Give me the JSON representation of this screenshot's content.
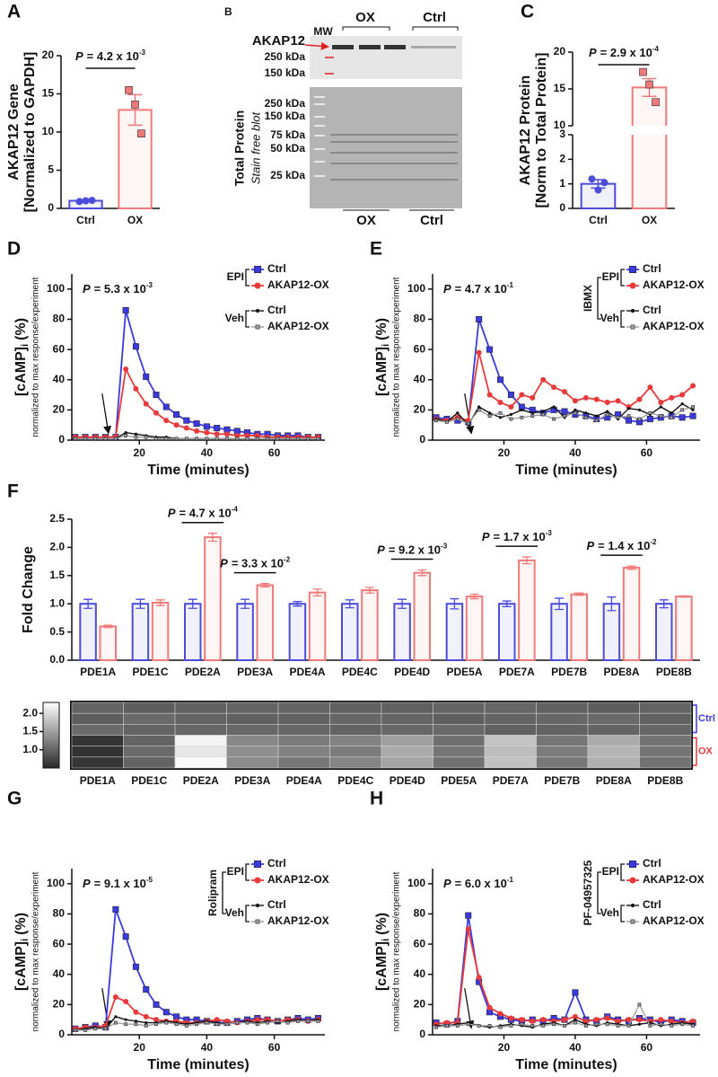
{
  "chart_data": [
    {
      "type": "bar",
      "panel_label": "A",
      "ylabel": "AKAP12 Gene",
      "ylabel2": "[Normalized to GAPDH]",
      "categories": [
        "Ctrl",
        "OX"
      ],
      "values": [
        1.0,
        12.9
      ],
      "errors": [
        0.1,
        2.0
      ],
      "points": [
        [
          0.9,
          1.0,
          1.05
        ],
        [
          15.5,
          13.6,
          9.8
        ]
      ],
      "colors": [
        "#4b4bdc",
        "#f07a7a"
      ],
      "ylim": [
        0,
        20
      ],
      "yticks": [
        0,
        5,
        10,
        15,
        20
      ],
      "p_value": {
        "symbol": "P",
        "text": "= 4.2 x 10",
        "exponent": "-3"
      }
    },
    {
      "type": "bar",
      "panel_label": "C",
      "ylabel": "AKAP12 Protein",
      "ylabel2": "[Norm to Total Protein]",
      "categories": [
        "Ctrl",
        "OX"
      ],
      "values": [
        1.0,
        15.2
      ],
      "errors": [
        0.17,
        1.2
      ],
      "points": [
        [
          1.2,
          0.75,
          1.05
        ],
        [
          17.3,
          15.6,
          13.2
        ]
      ],
      "colors": [
        "#4b4bdc",
        "#f07a7a"
      ],
      "ylim": [
        0,
        20
      ],
      "axis_break": [
        3,
        10
      ],
      "yticks": [
        0,
        1,
        2,
        3,
        10,
        15,
        20
      ],
      "p_value": {
        "symbol": "P",
        "text": "= 2.9 x 10",
        "exponent": "-4"
      }
    },
    {
      "type": "line",
      "panel_label": "D",
      "ylabel": "[cAMP]",
      "ylabel_sub": "i",
      "ylabel_unit": "(%)",
      "ylabel2": "normalized to max response/experiment",
      "xlabel": "Time (minutes)",
      "legend_groups": [
        "EPI",
        "Veh"
      ],
      "p_value": {
        "symbol": "P",
        "text": "= 5.3 x 10",
        "exponent": "-3"
      },
      "xlim": [
        0,
        75
      ],
      "xticks": [
        20,
        40,
        60
      ],
      "ylim": [
        0,
        110
      ],
      "yticks": [
        0,
        20,
        40,
        60,
        80,
        100
      ],
      "x": [
        1,
        4,
        7,
        10,
        13,
        16,
        19,
        22,
        25,
        28,
        31,
        34,
        37,
        40,
        43,
        46,
        49,
        52,
        55,
        58,
        61,
        64,
        67,
        70,
        73
      ],
      "series": [
        {
          "name": "Ctrl",
          "color": "#3a3ae0",
          "values": [
            2,
            2,
            2,
            2,
            2,
            86,
            62,
            42,
            30,
            22,
            17,
            13,
            11,
            9,
            8,
            7,
            6,
            5,
            4,
            4,
            3,
            3,
            3,
            2,
            2
          ]
        },
        {
          "name": "AKAP12-OX",
          "color": "#e83a3a",
          "values": [
            2,
            2,
            2,
            2,
            2,
            47,
            34,
            24,
            18,
            13,
            10,
            8,
            6,
            5,
            4,
            4,
            3,
            3,
            3,
            2,
            2,
            2,
            2,
            2,
            2
          ]
        },
        {
          "name": "Ctrl",
          "color": "#111111",
          "values": [
            1,
            1,
            1,
            1,
            1,
            5,
            4,
            3,
            2,
            2,
            1,
            1,
            1,
            1,
            1,
            1,
            1,
            1,
            1,
            1,
            1,
            1,
            1,
            1,
            1
          ]
        },
        {
          "name": "AKAP12-OX",
          "color": "#a0a0a0",
          "values": [
            1,
            1,
            1,
            1,
            1,
            3,
            2,
            2,
            1,
            1,
            1,
            1,
            1,
            1,
            1,
            1,
            1,
            1,
            1,
            1,
            1,
            1,
            1,
            1,
            1
          ]
        }
      ]
    },
    {
      "type": "line",
      "panel_label": "E",
      "ylabel": "[cAMP]",
      "ylabel_sub": "i",
      "ylabel_unit": "(%)",
      "ylabel2": "normalized to max response/experiment",
      "xlabel": "Time (minutes)",
      "treatment": "IBMX",
      "legend_groups": [
        "EPI",
        "Veh"
      ],
      "p_value": {
        "symbol": "P",
        "text": "= 4.7 x 10",
        "exponent": "-1"
      },
      "xlim": [
        0,
        75
      ],
      "xticks": [
        20,
        40,
        60
      ],
      "ylim": [
        0,
        110
      ],
      "yticks": [
        0,
        20,
        40,
        60,
        80,
        100
      ],
      "x": [
        1,
        4,
        7,
        10,
        13,
        16,
        19,
        22,
        25,
        28,
        31,
        34,
        37,
        40,
        43,
        46,
        49,
        52,
        55,
        58,
        61,
        64,
        67,
        70,
        73
      ],
      "series": [
        {
          "name": "Ctrl",
          "color": "#3a3ae0",
          "values": [
            15,
            14,
            13,
            12,
            80,
            60,
            40,
            30,
            22,
            20,
            18,
            20,
            19,
            17,
            16,
            14,
            15,
            17,
            13,
            12,
            14,
            15,
            16,
            15,
            16
          ]
        },
        {
          "name": "AKAP12-OX",
          "color": "#e83a3a",
          "values": [
            14,
            13,
            15,
            13,
            58,
            30,
            25,
            22,
            30,
            28,
            40,
            35,
            32,
            26,
            28,
            27,
            25,
            26,
            22,
            27,
            35,
            25,
            28,
            30,
            36
          ]
        },
        {
          "name": "Ctrl",
          "color": "#111111",
          "values": [
            14,
            12,
            18,
            10,
            22,
            18,
            15,
            17,
            20,
            18,
            19,
            22,
            15,
            20,
            18,
            16,
            19,
            14,
            21,
            20,
            17,
            22,
            18,
            24,
            20
          ]
        },
        {
          "name": "AKAP12-OX",
          "color": "#a0a0a0",
          "values": [
            13,
            12,
            14,
            11,
            20,
            16,
            18,
            14,
            15,
            16,
            17,
            14,
            16,
            18,
            15,
            13,
            17,
            15,
            16,
            14,
            18,
            16,
            15,
            20,
            22
          ]
        }
      ]
    },
    {
      "type": "grouped_bar",
      "panel_label": "F",
      "ylabel": "Fold Change",
      "categories": [
        "PDE1A",
        "PDE1C",
        "PDE2A",
        "PDE3A",
        "PDE4A",
        "PDE4C",
        "PDE4D",
        "PDE5A",
        "PDE7A",
        "PDE7B",
        "PDE8A",
        "PDE8B"
      ],
      "ylim": [
        0,
        2.5
      ],
      "yticks": [
        {
          "value": 0,
          "label": "0.0"
        },
        0.5,
        {
          "value": 1,
          "label": "1.0"
        },
        1.5,
        {
          "value": 2,
          "label": "2.0"
        },
        2.5
      ],
      "series": [
        {
          "color": "#4b4bdc",
          "values": [
            1.0,
            1.0,
            1.0,
            1.0,
            1.0,
            1.0,
            1.0,
            1.0,
            1.0,
            1.0,
            1.0,
            1.0
          ],
          "errors": [
            0.08,
            0.08,
            0.08,
            0.08,
            0.04,
            0.07,
            0.08,
            0.09,
            0.05,
            0.1,
            0.12,
            0.07
          ]
        },
        {
          "color": "#f07a7a",
          "values": [
            0.6,
            1.02,
            2.18,
            1.33,
            1.2,
            1.24,
            1.55,
            1.13,
            1.77,
            1.17,
            1.64,
            1.13
          ],
          "errors": [
            0.02,
            0.05,
            0.07,
            0.03,
            0.06,
            0.05,
            0.05,
            0.04,
            0.06,
            0.02,
            0.03,
            0.01
          ]
        }
      ],
      "p_values": [
        null,
        null,
        {
          "symbol": "P",
          "text": "= 4.7 x 10",
          "exponent": "-4"
        },
        {
          "symbol": "P",
          "text": "= 3.3 x 10",
          "exponent": "-2"
        },
        null,
        null,
        {
          "symbol": "P",
          "text": "= 9.2 x 10",
          "exponent": "-3"
        },
        null,
        {
          "symbol": "P",
          "text": "= 1.7 x 10",
          "exponent": "-3"
        },
        null,
        {
          "symbol": "P",
          "text": "= 1.4 x 10",
          "exponent": "-2"
        },
        null
      ]
    },
    {
      "type": "heatmap",
      "categories": [
        "PDE1A",
        "PDE1C",
        "PDE2A",
        "PDE3A",
        "PDE4A",
        "PDE4C",
        "PDE4D",
        "PDE5A",
        "PDE7A",
        "PDE7B",
        "PDE8A",
        "PDE8B"
      ],
      "row_groups": [
        "Ctrl",
        "OX"
      ],
      "row_group_colors": [
        "#3a3ae0",
        "#e83a3a"
      ],
      "clim": [
        0.5,
        2.3
      ],
      "colorbar_ticks": [
        {
          "value": 1,
          "label": "1.0"
        },
        1.5,
        {
          "value": 2,
          "label": "2.0"
        }
      ],
      "values": [
        [
          1.0,
          0.95,
          0.98,
          1.0,
          1.0,
          0.98,
          0.97,
          1.0,
          1.02,
          0.98,
          0.95,
          1.0
        ],
        [
          0.95,
          1.05,
          1.0,
          0.97,
          0.98,
          1.03,
          1.0,
          0.96,
          1.0,
          1.03,
          1.05,
          0.98
        ],
        [
          1.05,
          1.0,
          1.02,
          1.03,
          1.02,
          0.99,
          1.03,
          1.04,
          0.98,
          0.99,
          1.0,
          1.02
        ],
        [
          0.6,
          1.0,
          2.2,
          1.3,
          1.2,
          1.25,
          1.5,
          1.1,
          1.8,
          1.15,
          1.6,
          1.13
        ],
        [
          0.58,
          1.05,
          2.1,
          1.35,
          1.25,
          1.2,
          1.6,
          1.15,
          1.75,
          1.2,
          1.68,
          1.14
        ],
        [
          0.62,
          1.0,
          2.25,
          1.33,
          1.15,
          1.28,
          1.55,
          1.12,
          1.78,
          1.17,
          1.64,
          1.12
        ]
      ]
    },
    {
      "type": "line",
      "panel_label": "G",
      "ylabel": "[cAMP]",
      "ylabel_sub": "i",
      "ylabel_unit": "(%)",
      "ylabel2": "normalized to max response/experiment",
      "xlabel": "Time (minutes)",
      "treatment": "Rolipram",
      "legend_groups": [
        "EPI",
        "Veh"
      ],
      "p_value": {
        "symbol": "P",
        "text": "= 9.1 x 10",
        "exponent": "-5"
      },
      "xlim": [
        0,
        75
      ],
      "xticks": [
        20,
        40,
        60
      ],
      "ylim": [
        0,
        110
      ],
      "yticks": [
        0,
        20,
        40,
        60,
        80,
        100
      ],
      "x": [
        1,
        4,
        7,
        10,
        13,
        16,
        19,
        22,
        25,
        28,
        31,
        34,
        37,
        40,
        43,
        46,
        49,
        52,
        55,
        58,
        61,
        64,
        67,
        70,
        73
      ],
      "series": [
        {
          "name": "Ctrl",
          "color": "#3a3ae0",
          "values": [
            4,
            5,
            6,
            5,
            83,
            65,
            45,
            30,
            20,
            15,
            12,
            10,
            10,
            9,
            8,
            8,
            9,
            10,
            11,
            10,
            9,
            10,
            11,
            10,
            11
          ]
        },
        {
          "name": "AKAP12-OX",
          "color": "#e83a3a",
          "values": [
            4,
            5,
            5,
            6,
            25,
            22,
            15,
            12,
            10,
            9,
            9,
            8,
            8,
            9,
            10,
            9,
            8,
            9,
            10,
            10,
            9,
            10,
            10,
            9,
            10
          ]
        },
        {
          "name": "Ctrl",
          "color": "#111111",
          "values": [
            3,
            4,
            5,
            4,
            12,
            10,
            9,
            8,
            8,
            9,
            8,
            7,
            8,
            9,
            8,
            7,
            8,
            9,
            8,
            9,
            8,
            9,
            10,
            9,
            10
          ]
        },
        {
          "name": "AKAP12-OX",
          "color": "#a0a0a0",
          "values": [
            3,
            3,
            4,
            4,
            8,
            7,
            7,
            6,
            7,
            8,
            7,
            6,
            7,
            8,
            7,
            7,
            8,
            8,
            7,
            8,
            9,
            8,
            9,
            9,
            9
          ]
        }
      ]
    },
    {
      "type": "line",
      "panel_label": "H",
      "ylabel": "[cAMP]",
      "ylabel_sub": "i",
      "ylabel_unit": "(%)",
      "ylabel2": "normalized to max response/experiment",
      "xlabel": "Time (minutes)",
      "treatment": "PF-04957325",
      "legend_groups": [
        "EPI",
        "Veh"
      ],
      "p_value": {
        "symbol": "P",
        "text": "= 6.0 x 10",
        "exponent": "-1"
      },
      "xlim": [
        0,
        75
      ],
      "xticks": [
        20,
        40,
        60
      ],
      "ylim": [
        0,
        110
      ],
      "yticks": [
        0,
        20,
        40,
        60,
        80,
        100
      ],
      "x": [
        1,
        4,
        7,
        10,
        13,
        16,
        19,
        22,
        25,
        28,
        31,
        34,
        37,
        40,
        43,
        46,
        49,
        52,
        55,
        58,
        61,
        64,
        67,
        70,
        73
      ],
      "series": [
        {
          "name": "Ctrl",
          "color": "#3a3ae0",
          "values": [
            8,
            7,
            9,
            79,
            35,
            15,
            12,
            10,
            9,
            10,
            9,
            11,
            10,
            28,
            10,
            9,
            12,
            10,
            9,
            11,
            10,
            8,
            10,
            9,
            8
          ]
        },
        {
          "name": "AKAP12-OX",
          "color": "#e83a3a",
          "values": [
            7,
            8,
            8,
            70,
            38,
            18,
            14,
            11,
            10,
            9,
            10,
            9,
            10,
            12,
            9,
            10,
            11,
            9,
            10,
            10,
            9,
            10,
            9,
            8,
            9
          ]
        },
        {
          "name": "Ctrl",
          "color": "#111111",
          "values": [
            6,
            6,
            7,
            8,
            6,
            5,
            6,
            7,
            6,
            5,
            7,
            8,
            6,
            10,
            7,
            6,
            8,
            7,
            6,
            7,
            8,
            6,
            7,
            8,
            7
          ]
        },
        {
          "name": "AKAP12-OX",
          "color": "#a0a0a0",
          "values": [
            5,
            6,
            6,
            7,
            6,
            6,
            5,
            6,
            7,
            6,
            6,
            7,
            6,
            8,
            6,
            7,
            7,
            6,
            6,
            20,
            6,
            7,
            6,
            7,
            6
          ]
        }
      ]
    }
  ],
  "blot": {
    "panel_label": "B",
    "mw": "MW",
    "lanes_top": [
      "OX",
      "Ctrl"
    ],
    "target": "AKAP12",
    "target_markers": [
      "250 kDa",
      "150 kDa"
    ],
    "total_markers": [
      "250 kDa",
      "150 kDa",
      "75 kDa",
      "50 kDa",
      "25 kDa"
    ],
    "total_title": "Total Protein",
    "total_subtitle": "Stain free blot",
    "lanes_bottom": [
      "OX",
      "Ctrl"
    ]
  }
}
